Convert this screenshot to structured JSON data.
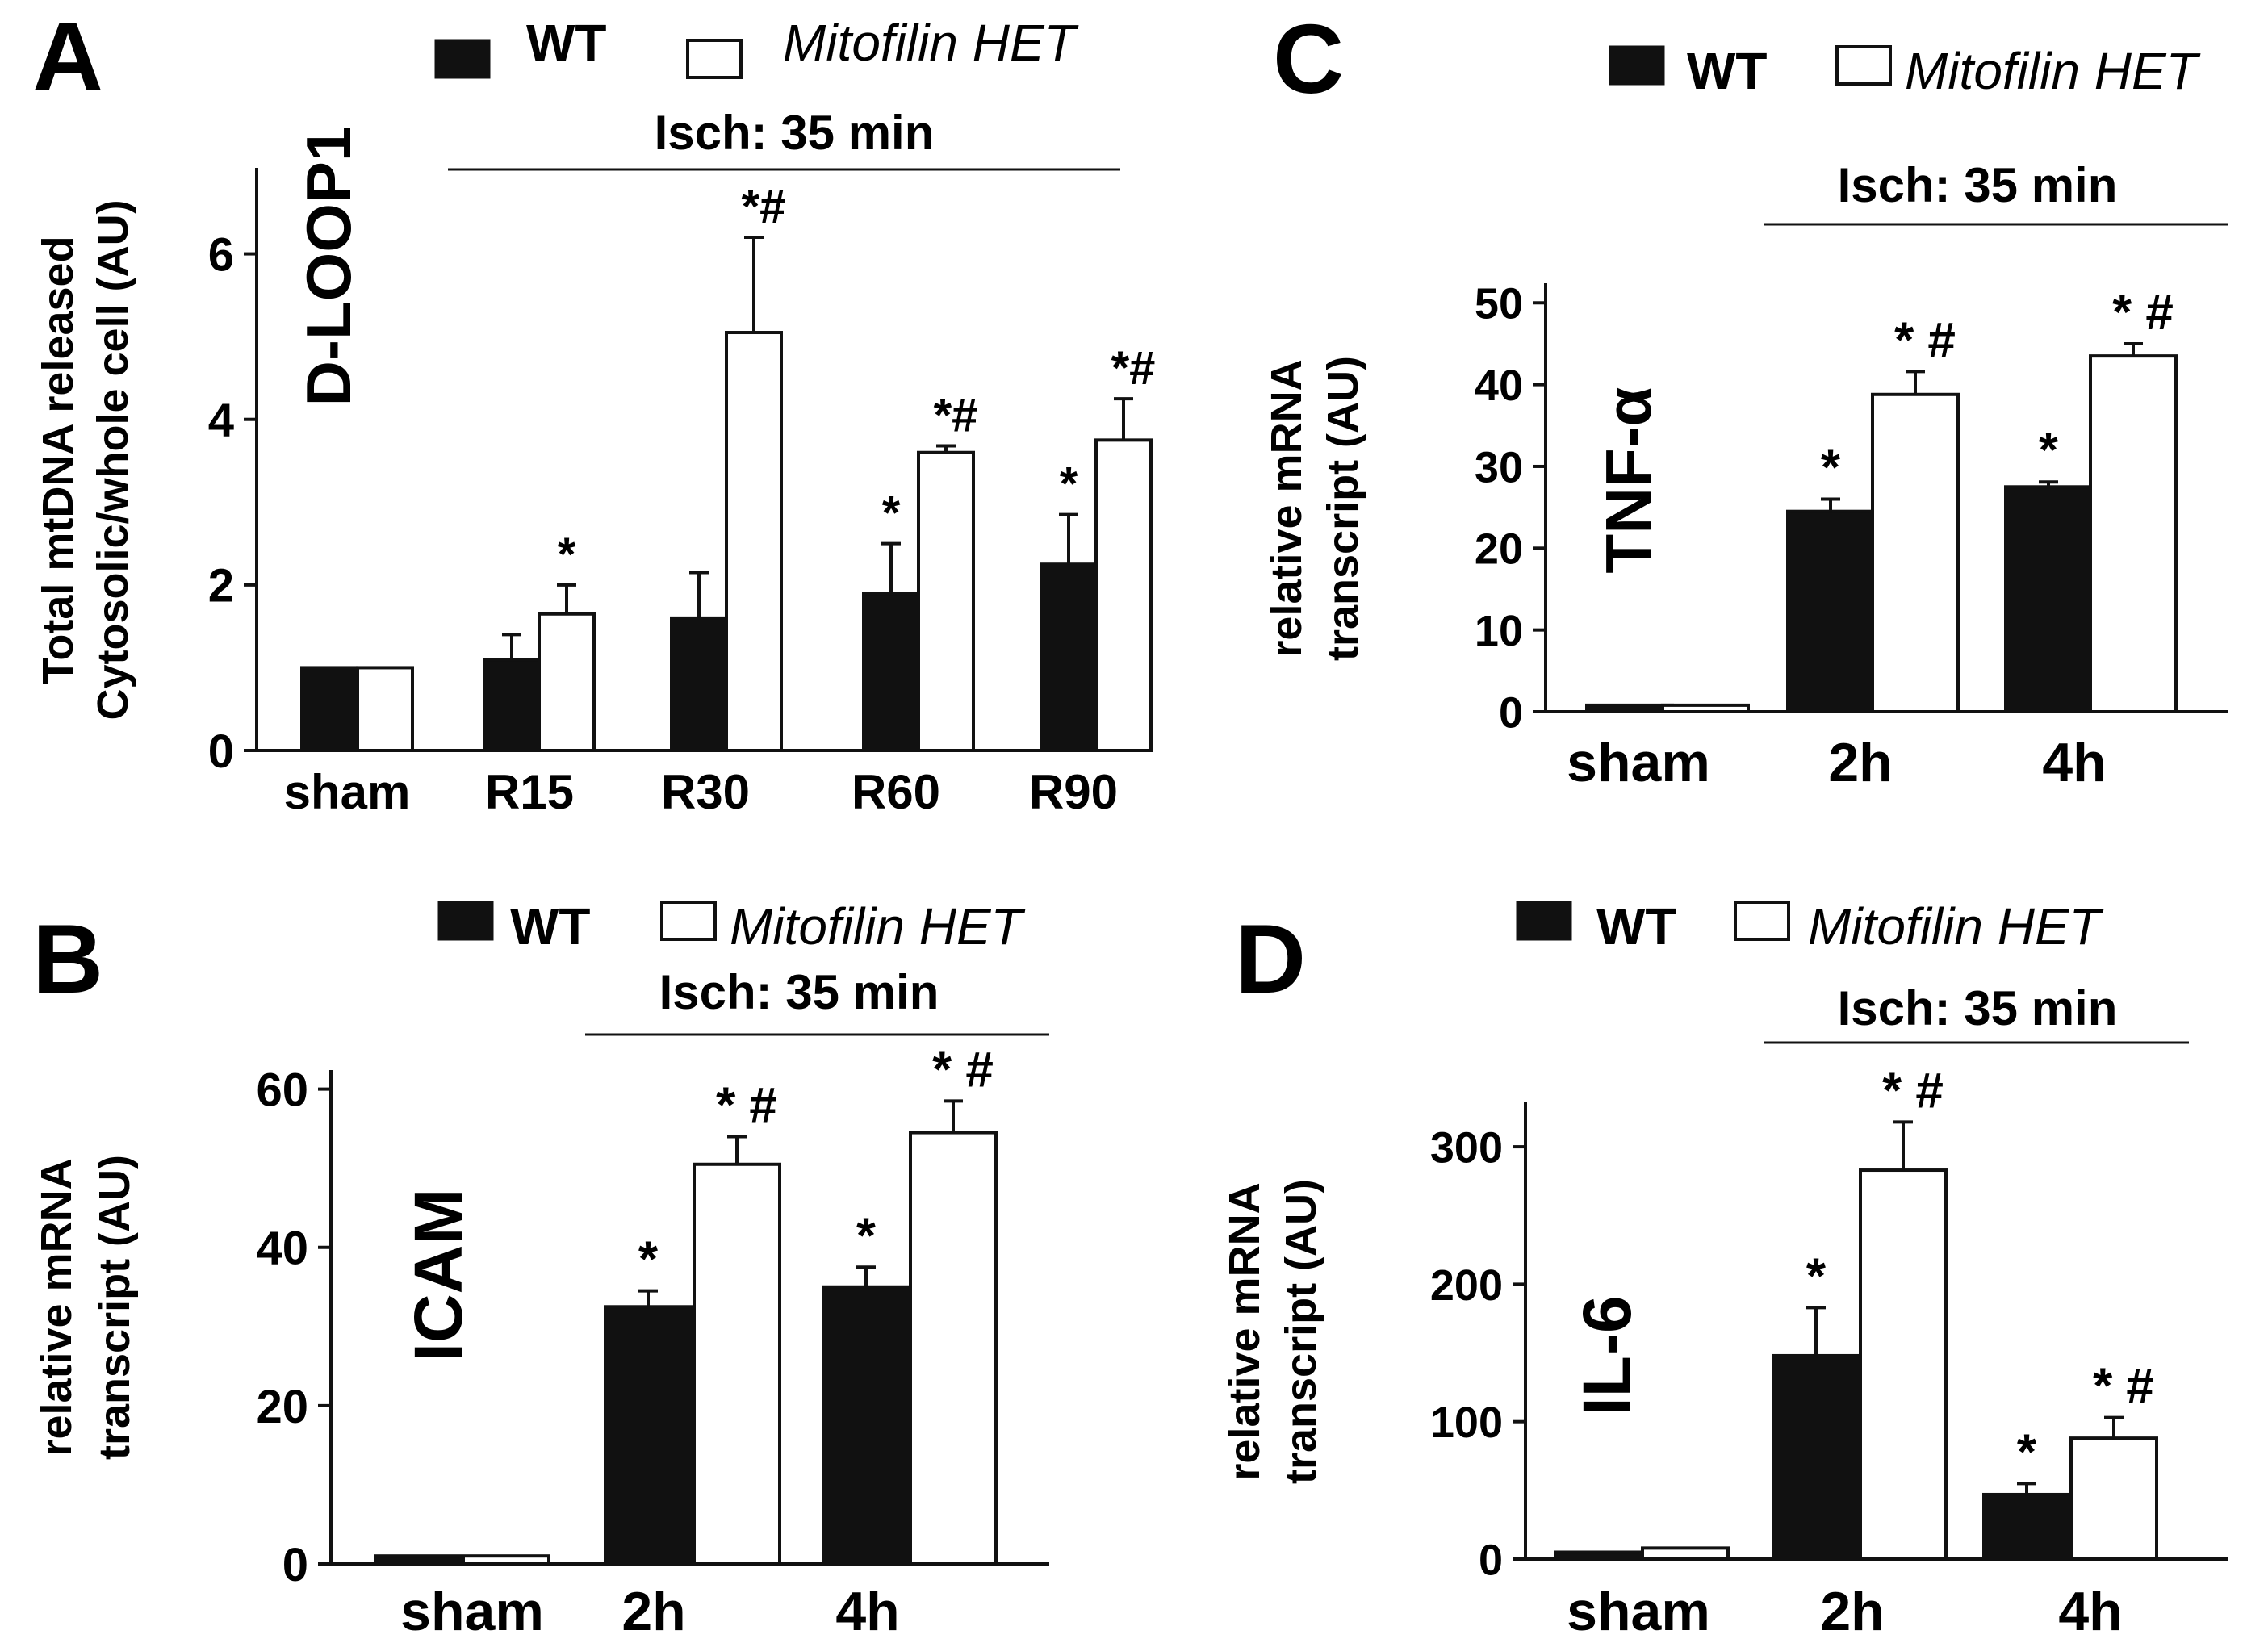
{
  "chart_data": [
    {
      "panel": "A",
      "type": "bar",
      "title": "D-LOOP1",
      "ylabel_line1": "Total mtDNA released",
      "ylabel_line2": "Cytosolic/whole cell (AU)",
      "legend": {
        "wt": "WT",
        "het": "Mitofilin HET"
      },
      "isch_label": "Isch: 35 min",
      "categories": [
        "sham",
        "R15",
        "R30",
        "R60",
        "R90"
      ],
      "ylim": [
        0,
        7
      ],
      "yticks": [
        0,
        2,
        4,
        6
      ],
      "series": [
        {
          "name": "WT",
          "values": [
            1.0,
            1.1,
            1.6,
            1.9,
            2.25
          ],
          "errors": [
            0,
            0.3,
            0.55,
            0.6,
            0.6
          ],
          "annotations": [
            "",
            "",
            "",
            "*",
            "*"
          ]
        },
        {
          "name": "Mitofilin HET",
          "values": [
            1.0,
            1.65,
            5.05,
            3.6,
            3.75
          ],
          "errors": [
            0,
            0.35,
            1.15,
            0.08,
            0.5
          ],
          "annotations": [
            "",
            "*",
            "*#",
            "*#",
            "*#"
          ]
        }
      ]
    },
    {
      "panel": "B",
      "type": "bar",
      "title": "ICAM",
      "ylabel_line1": "relative mRNA",
      "ylabel_line2": "transcript (AU)",
      "legend": {
        "wt": "WT",
        "het": "Mitofilin HET"
      },
      "isch_label": "Isch: 35 min",
      "categories": [
        "sham",
        "2h",
        "4h"
      ],
      "ylim": [
        0,
        62
      ],
      "yticks": [
        0,
        20,
        40,
        60
      ],
      "series": [
        {
          "name": "WT",
          "values": [
            1,
            32.5,
            35
          ],
          "errors": [
            0,
            2,
            2.5
          ],
          "annotations": [
            "",
            "*",
            "*"
          ]
        },
        {
          "name": "Mitofilin HET",
          "values": [
            1,
            50.5,
            54.5
          ],
          "errors": [
            0,
            3.5,
            4
          ],
          "annotations": [
            "",
            "* #",
            "* #"
          ]
        }
      ]
    },
    {
      "panel": "C",
      "type": "bar",
      "title": "TNF-α",
      "ylabel_line1": "relative mRNA",
      "ylabel_line2": "transcript (AU)",
      "legend": {
        "wt": "WT",
        "het": "Mitofilin HET"
      },
      "isch_label": "Isch: 35 min",
      "categories": [
        "sham",
        "2h",
        "4h"
      ],
      "ylim": [
        0,
        52
      ],
      "yticks": [
        0,
        10,
        20,
        30,
        40,
        50
      ],
      "series": [
        {
          "name": "WT",
          "values": [
            0.8,
            24.5,
            27.5
          ],
          "errors": [
            0,
            1.5,
            0.6
          ],
          "annotations": [
            "",
            "*",
            "*"
          ]
        },
        {
          "name": "Mitofilin HET",
          "values": [
            0.8,
            38.8,
            43.5
          ],
          "errors": [
            0,
            2.8,
            1.5
          ],
          "annotations": [
            "",
            "* #",
            "* #"
          ]
        }
      ]
    },
    {
      "panel": "D",
      "type": "bar",
      "title": "IL-6",
      "ylabel_line1": "relative mRNA",
      "ylabel_line2": "transcript (AU)",
      "legend": {
        "wt": "WT",
        "het": "Mitofilin HET"
      },
      "isch_label": "Isch: 35 min",
      "categories": [
        "sham",
        "2h",
        "4h"
      ],
      "ylim": [
        0,
        330
      ],
      "yticks": [
        0,
        100,
        200,
        300
      ],
      "series": [
        {
          "name": "WT",
          "values": [
            5,
            148,
            47
          ],
          "errors": [
            0,
            35,
            8
          ],
          "annotations": [
            "",
            "*",
            "*"
          ]
        },
        {
          "name": "Mitofilin HET",
          "values": [
            8,
            283,
            88
          ],
          "errors": [
            0,
            35,
            15
          ],
          "annotations": [
            "",
            "* #",
            "* #"
          ]
        }
      ]
    }
  ]
}
